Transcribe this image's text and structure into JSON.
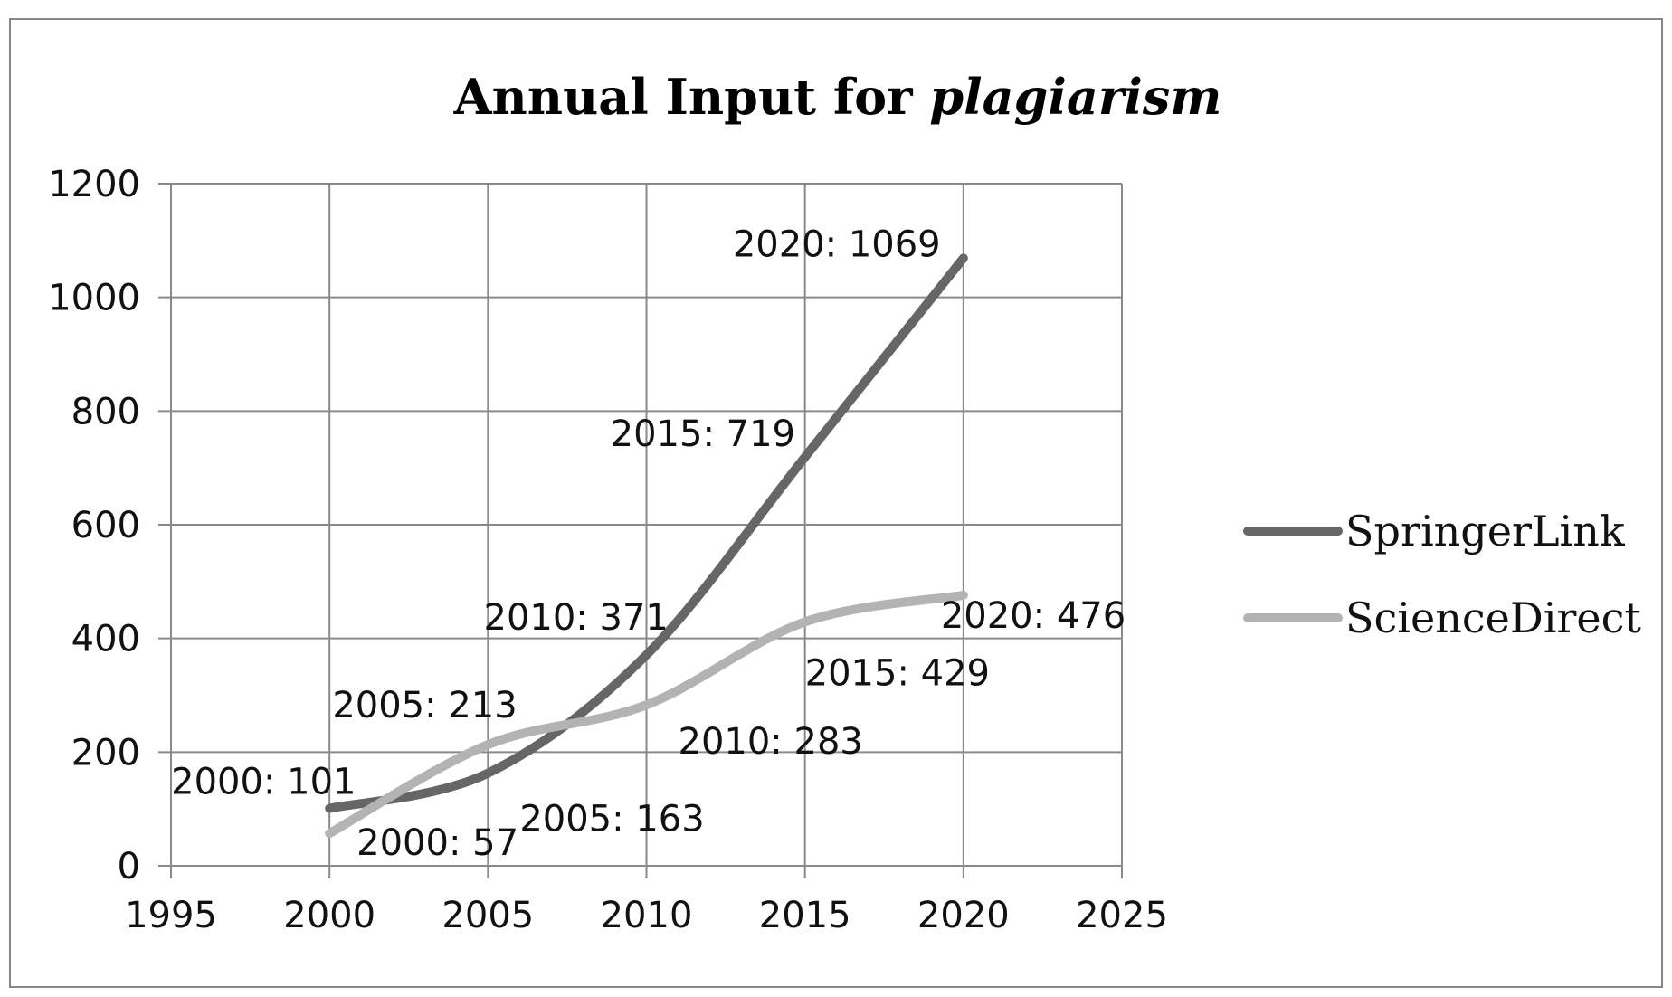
{
  "chart_data": {
    "type": "line",
    "title": "Annual Input for",
    "title_italic": "plagiarism",
    "xlabel": "",
    "ylabel": "",
    "xlim": [
      1995,
      2025
    ],
    "ylim": [
      0,
      1200
    ],
    "x_ticks": [
      1995,
      2000,
      2005,
      2010,
      2015,
      2020,
      2025
    ],
    "y_ticks": [
      0,
      200,
      400,
      600,
      800,
      1000,
      1200
    ],
    "x_tick_labels": [
      "1995",
      "2000",
      "2005",
      "2010",
      "2015",
      "2020",
      "2025"
    ],
    "y_tick_labels": [
      "0",
      "200",
      "400",
      "600",
      "800",
      "1000",
      "1200"
    ],
    "grid": true,
    "legend_position": "right",
    "x": [
      2000,
      2005,
      2010,
      2015,
      2020
    ],
    "series": [
      {
        "name": "SpringerLink",
        "color": "#666666",
        "values": [
          101,
          163,
          371,
          719,
          1069
        ],
        "labels": [
          "2000: 101",
          "2005: 163",
          "2010: 371",
          "2015: 719",
          "2020: 1069"
        ]
      },
      {
        "name": "ScienceDirect",
        "color": "#b3b3b3",
        "values": [
          57,
          213,
          283,
          429,
          476
        ],
        "labels": [
          "2000: 57",
          "2005: 213",
          "2010: 283",
          "2015: 429",
          "2020: 476"
        ]
      }
    ]
  }
}
